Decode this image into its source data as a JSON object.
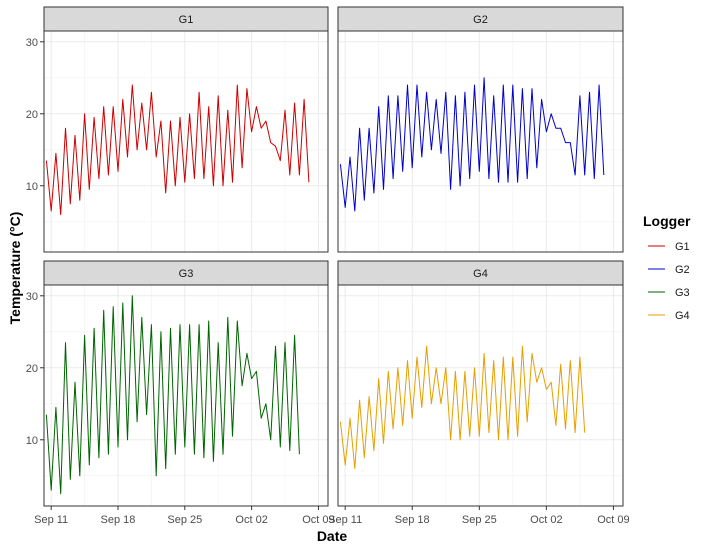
{
  "chart_data": {
    "type": "line",
    "xlabel": "Date",
    "ylabel": "Temperature (°C)",
    "x_ticks": [
      "Sep 11",
      "Sep 18",
      "Sep 25",
      "Oct 02",
      "Oct 09"
    ],
    "x_tick_dates": [
      "2023-09-11",
      "2023-09-18",
      "2023-09-25",
      "2023-10-02",
      "2023-10-09"
    ],
    "x_range": [
      "2023-09-10T06:00",
      "2023-10-10T00:00"
    ],
    "y_ticks": [
      10,
      20,
      30
    ],
    "ylim": [
      0.8,
      31.5
    ],
    "grid": true,
    "legend": {
      "title": "Logger",
      "position": "right",
      "items": [
        {
          "name": "G1",
          "color": "#CC0000"
        },
        {
          "name": "G2",
          "color": "#0000CC"
        },
        {
          "name": "G3",
          "color": "#006400"
        },
        {
          "name": "G4",
          "color": "#E69F00"
        }
      ]
    },
    "series": [
      {
        "name": "G1",
        "color": "#CC0000",
        "x_start": "2023-09-10T12:00",
        "x_step_hours": 12,
        "values": [
          13.5,
          6.5,
          14.5,
          6,
          18,
          7.5,
          17,
          8,
          20,
          9.5,
          19.5,
          11,
          21,
          11.5,
          21,
          12,
          22,
          14,
          24,
          15,
          21.5,
          15,
          23,
          14,
          19,
          9,
          19,
          10,
          19.5,
          10.5,
          20,
          11,
          23,
          11,
          21,
          10,
          22.5,
          10,
          20.5,
          10.5,
          24,
          12.5,
          23.5,
          17.5,
          21,
          18,
          19,
          16,
          15.5,
          13.5,
          20.5,
          11.5,
          21.5,
          11.5,
          22,
          10.5
        ]
      },
      {
        "name": "G2",
        "color": "#0000CC",
        "x_start": "2023-09-10T12:00",
        "x_step_hours": 12,
        "values": [
          13,
          7,
          14,
          6.5,
          18,
          8,
          18,
          9,
          21,
          9.5,
          22.5,
          11,
          22.5,
          12,
          24,
          12.5,
          24,
          14,
          23,
          15,
          22,
          14.5,
          23,
          9.5,
          22.5,
          10,
          23,
          11,
          24,
          12,
          25,
          11,
          22.5,
          10.5,
          24,
          10.5,
          24,
          10.5,
          23.5,
          11,
          23.5,
          12.5,
          22,
          17.5,
          20,
          18,
          18,
          16,
          16,
          11.5,
          22.5,
          11.5,
          23,
          11,
          24,
          11.5
        ]
      },
      {
        "name": "G3",
        "color": "#006400",
        "x_start": "2023-09-10T12:00",
        "x_step_hours": 12,
        "values": [
          13.5,
          3,
          14.5,
          2.5,
          23.5,
          4.5,
          18,
          5,
          24.5,
          6.5,
          25.5,
          7.5,
          28,
          8,
          28.5,
          9,
          29,
          10,
          30,
          12.5,
          27,
          13.5,
          26,
          5,
          25,
          6,
          25.5,
          8,
          26,
          9,
          26,
          8,
          26,
          7.5,
          26.5,
          7,
          23.5,
          8,
          27,
          10.5,
          26.5,
          17.5,
          22,
          18.5,
          19.5,
          13,
          15,
          10,
          23,
          9,
          23.5,
          8.5,
          24.5,
          8
        ]
      },
      {
        "name": "G4",
        "color": "#E69F00",
        "x_start": "2023-09-10T12:00",
        "x_step_hours": 12,
        "values": [
          12.5,
          6.5,
          13,
          6,
          15.5,
          7.5,
          16,
          8.5,
          18.5,
          9.5,
          19.5,
          11.5,
          20,
          12,
          21,
          13,
          21.5,
          14.5,
          23,
          15,
          20,
          15,
          20,
          10,
          19.5,
          10,
          19.5,
          10.5,
          20,
          10.5,
          22,
          11,
          21,
          10,
          21.5,
          10,
          21.5,
          10.5,
          23,
          12.5,
          22,
          18,
          20,
          17,
          18,
          12,
          20.5,
          11.5,
          21,
          11,
          21.5,
          11
        ]
      }
    ]
  }
}
